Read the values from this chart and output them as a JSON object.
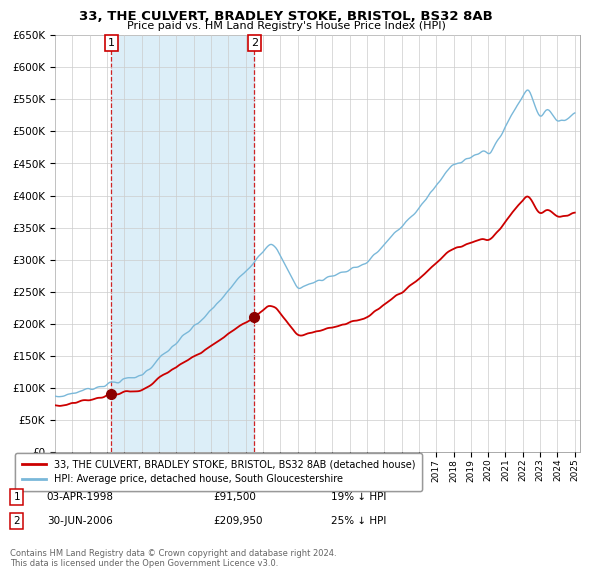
{
  "title": "33, THE CULVERT, BRADLEY STOKE, BRISTOL, BS32 8AB",
  "subtitle": "Price paid vs. HM Land Registry's House Price Index (HPI)",
  "legend_line1": "33, THE CULVERT, BRADLEY STOKE, BRISTOL, BS32 8AB (detached house)",
  "legend_line2": "HPI: Average price, detached house, South Gloucestershire",
  "footnote": "Contains HM Land Registry data © Crown copyright and database right 2024.\nThis data is licensed under the Open Government Licence v3.0.",
  "transaction1_date": "03-APR-1998",
  "transaction1_price": 91500,
  "transaction1_pct": "19% ↓ HPI",
  "transaction2_date": "30-JUN-2006",
  "transaction2_price": 209950,
  "transaction2_pct": "25% ↓ HPI",
  "hpi_color": "#7ab8d9",
  "price_color": "#cc0000",
  "dot_color": "#8b0000",
  "vline_color": "#cc0000",
  "shaded_color": "#dceef8",
  "grid_color": "#cccccc",
  "transaction1_year": 1998.25,
  "transaction2_year": 2006.5
}
